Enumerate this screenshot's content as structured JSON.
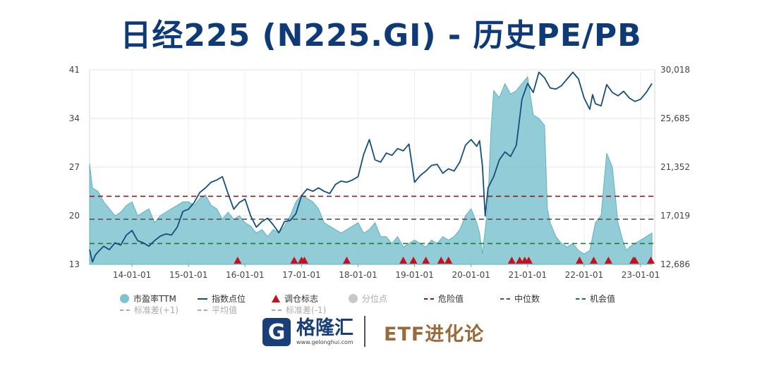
{
  "title": "日经225 (N225.GI) - 历史PE/PB",
  "chart_data": {
    "type": "line",
    "xaxis": {
      "tick_labels": [
        "14-01-01",
        "15-01-01",
        "16-01-01",
        "17-01-01",
        "18-01-01",
        "19-01-01",
        "20-01-01",
        "21-01-01",
        "22-01-01",
        "23-01-01"
      ],
      "range": [
        "2013-04-01",
        "2023-04-01"
      ]
    },
    "y_left": {
      "tick_labels": [
        "41",
        "34",
        "27",
        "20",
        "13"
      ],
      "ylim": [
        13,
        41
      ]
    },
    "y_right": {
      "tick_labels": [
        "30,018",
        "25,685",
        "21,352",
        "17,019",
        "12,686"
      ],
      "ylim": [
        12686,
        30018
      ]
    },
    "grid": true,
    "pe_series": {
      "name": "市盈率TTM",
      "color": "#7fc3cf",
      "t": [
        2013.25,
        2013.3,
        2013.4,
        2013.5,
        2013.6,
        2013.7,
        2013.8,
        2013.9,
        2014.0,
        2014.1,
        2014.2,
        2014.3,
        2014.4,
        2014.5,
        2014.6,
        2014.7,
        2014.8,
        2014.9,
        2015.0,
        2015.1,
        2015.2,
        2015.3,
        2015.4,
        2015.5,
        2015.6,
        2015.7,
        2015.8,
        2015.9,
        2016.0,
        2016.1,
        2016.2,
        2016.3,
        2016.4,
        2016.5,
        2016.6,
        2016.7,
        2016.8,
        2016.9,
        2017.0,
        2017.1,
        2017.2,
        2017.3,
        2017.4,
        2017.5,
        2017.6,
        2017.7,
        2017.8,
        2017.9,
        2018.0,
        2018.1,
        2018.2,
        2018.3,
        2018.4,
        2018.5,
        2018.6,
        2018.7,
        2018.8,
        2018.9,
        2019.0,
        2019.1,
        2019.2,
        2019.3,
        2019.4,
        2019.5,
        2019.6,
        2019.7,
        2019.8,
        2019.9,
        2020.0,
        2020.1,
        2020.15,
        2020.2,
        2020.25,
        2020.3,
        2020.35,
        2020.4,
        2020.5,
        2020.6,
        2020.7,
        2020.8,
        2020.9,
        2021.0,
        2021.1,
        2021.2,
        2021.3,
        2021.35,
        2021.4,
        2021.5,
        2021.6,
        2021.7,
        2021.8,
        2021.9,
        2022.0,
        2022.1,
        2022.2,
        2022.3,
        2022.4,
        2022.5,
        2022.6,
        2022.7,
        2022.75,
        2022.8,
        2022.9,
        2023.0,
        2023.1,
        2023.2
      ],
      "values": [
        27.5,
        24.0,
        23.5,
        22.0,
        21.0,
        20.0,
        20.5,
        21.5,
        22.0,
        20.0,
        20.5,
        21.0,
        19.0,
        20.0,
        20.5,
        21.0,
        21.5,
        22.0,
        22.0,
        21.5,
        22.5,
        23.0,
        21.5,
        21.0,
        19.5,
        20.5,
        19.5,
        20.0,
        19.0,
        18.5,
        17.5,
        18.0,
        17.0,
        18.0,
        17.5,
        18.5,
        20.0,
        22.0,
        23.0,
        22.5,
        22.0,
        21.0,
        19.0,
        18.5,
        18.0,
        17.5,
        18.0,
        18.5,
        19.0,
        17.5,
        18.0,
        19.0,
        17.0,
        17.0,
        16.0,
        17.0,
        15.5,
        16.0,
        16.5,
        16.0,
        15.5,
        16.5,
        16.0,
        17.0,
        16.5,
        17.0,
        18.0,
        20.0,
        21.0,
        19.0,
        17.5,
        14.5,
        18.0,
        22.0,
        32.0,
        38.0,
        37.0,
        39.0,
        37.5,
        38.0,
        39.0,
        40.0,
        34.5,
        34.0,
        33.0,
        21.0,
        19.0,
        17.0,
        16.0,
        15.5,
        16.0,
        15.0,
        14.5,
        15.0,
        19.0,
        20.0,
        29.0,
        27.0,
        19.0,
        16.0,
        15.0,
        15.5,
        16.0,
        16.5,
        17.0,
        17.5
      ]
    },
    "index_series": {
      "name": "指数点位",
      "color": "#134e7d",
      "t": [
        2013.25,
        2013.3,
        2013.35,
        2013.4,
        2013.5,
        2013.6,
        2013.7,
        2013.8,
        2013.9,
        2014.0,
        2014.1,
        2014.2,
        2014.3,
        2014.4,
        2014.5,
        2014.6,
        2014.7,
        2014.8,
        2014.9,
        2015.0,
        2015.1,
        2015.2,
        2015.3,
        2015.4,
        2015.5,
        2015.6,
        2015.7,
        2015.8,
        2015.9,
        2016.0,
        2016.1,
        2016.2,
        2016.3,
        2016.4,
        2016.5,
        2016.6,
        2016.7,
        2016.8,
        2016.9,
        2017.0,
        2017.1,
        2017.2,
        2017.3,
        2017.4,
        2017.5,
        2017.6,
        2017.7,
        2017.8,
        2017.9,
        2018.0,
        2018.1,
        2018.2,
        2018.3,
        2018.4,
        2018.5,
        2018.6,
        2018.7,
        2018.8,
        2018.9,
        2019.0,
        2019.1,
        2019.2,
        2019.3,
        2019.4,
        2019.5,
        2019.6,
        2019.7,
        2019.8,
        2019.9,
        2020.0,
        2020.1,
        2020.15,
        2020.2,
        2020.25,
        2020.3,
        2020.35,
        2020.4,
        2020.5,
        2020.6,
        2020.7,
        2020.8,
        2020.9,
        2021.0,
        2021.1,
        2021.2,
        2021.3,
        2021.4,
        2021.5,
        2021.6,
        2021.7,
        2021.8,
        2021.9,
        2022.0,
        2022.1,
        2022.15,
        2022.2,
        2022.3,
        2022.4,
        2022.5,
        2022.6,
        2022.7,
        2022.8,
        2022.9,
        2023.0,
        2023.1,
        2023.2
      ],
      "values": [
        14000,
        12900,
        13500,
        13800,
        14300,
        14000,
        14600,
        14400,
        15300,
        15700,
        14800,
        14600,
        14300,
        14800,
        15200,
        15400,
        15300,
        16000,
        17400,
        17600,
        18200,
        19100,
        19500,
        20000,
        20200,
        20500,
        19000,
        17600,
        18200,
        18500,
        17000,
        16000,
        16500,
        16800,
        16200,
        15500,
        16500,
        16600,
        17200,
        18800,
        19400,
        19200,
        19500,
        19200,
        19000,
        19800,
        20100,
        20000,
        20200,
        20500,
        22500,
        23800,
        22000,
        21800,
        22600,
        22400,
        23000,
        22800,
        23400,
        20000,
        20600,
        21000,
        21500,
        21600,
        20800,
        21200,
        21000,
        21800,
        23300,
        23800,
        23200,
        23700,
        21500,
        17000,
        19500,
        20000,
        20500,
        22000,
        22700,
        22300,
        23300,
        27400,
        28800,
        28000,
        29800,
        29300,
        28400,
        28300,
        28600,
        29200,
        29800,
        29200,
        27500,
        26500,
        27800,
        27000,
        26800,
        28700,
        28000,
        27700,
        28100,
        27500,
        27200,
        27400,
        28000,
        28800
      ]
    },
    "danger_value": 22.8,
    "median_value": 19.5,
    "opportunity_value": 16.0,
    "rebalance_markers": [
      2015.87,
      2016.87,
      2017.0,
      2017.05,
      2017.8,
      2018.8,
      2018.98,
      2019.2,
      2019.47,
      2019.6,
      2020.72,
      2020.86,
      2020.95,
      2021.02,
      2021.92,
      2022.17,
      2022.43,
      2022.87,
      2022.9,
      2023.18
    ],
    "legend": {
      "row1": [
        {
          "key": "pe",
          "label": "市盈率TTM",
          "color": "#7fc3cf"
        },
        {
          "key": "index",
          "label": "指数点位",
          "color": "#134e7d"
        },
        {
          "key": "marker",
          "label": "调仓标志",
          "color": "#c1121f"
        },
        {
          "key": "quantile",
          "label": "分位点",
          "color": "#c8c8c8"
        },
        {
          "key": "danger",
          "label": "危险值",
          "color": "#8b1a1a"
        },
        {
          "key": "median",
          "label": "中位数",
          "color": "#555555"
        },
        {
          "key": "opp",
          "label": "机会值",
          "color": "#1a7a3a"
        }
      ],
      "row2": [
        {
          "key": "sd_plus",
          "label": "标准差(+1)",
          "color": "#aaaaaa"
        },
        {
          "key": "mean",
          "label": "平均值",
          "color": "#aaaaaa"
        },
        {
          "key": "sd_minus",
          "label": "标准差(-1)",
          "color": "#aaaaaa"
        }
      ]
    }
  },
  "footer": {
    "logo_letter": "G",
    "logo_name": "格隆汇",
    "logo_url": "www.gelonghui.com",
    "brand": "ETF进化论"
  }
}
